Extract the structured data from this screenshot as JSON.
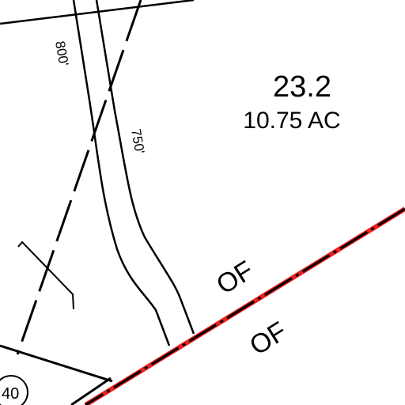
{
  "map": {
    "parcel": {
      "id": "23.2",
      "area": "10.75 AC"
    },
    "dimensions": {
      "left_road_edge": "800'",
      "right_road_edge": "750'"
    },
    "boundary_labels": {
      "upper": "OF",
      "lower": "OF"
    },
    "adjacent_parcel": {
      "id_partial": "40"
    },
    "colors": {
      "linework": "#000000",
      "highlight_boundary": "#e8201e",
      "background": "#ffffff"
    }
  }
}
